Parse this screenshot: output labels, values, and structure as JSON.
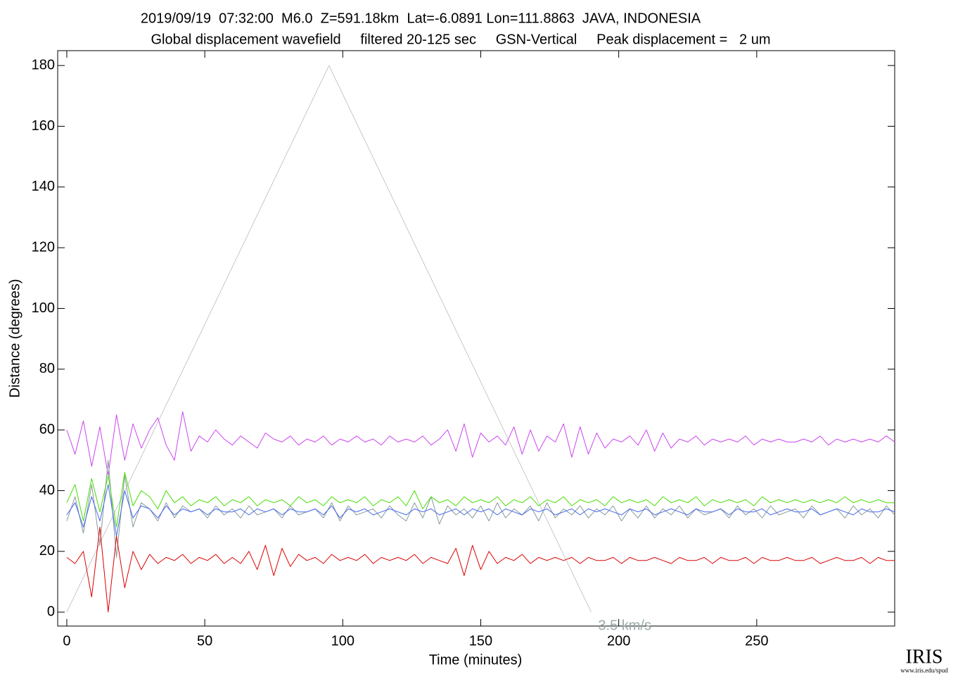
{
  "chart_data": {
    "type": "line",
    "title": "2019/09/19  07:32:00  M6.0  Z=591.18km  Lat=-6.0891 Lon=111.8863  JAVA, INDONESIA",
    "subtitle": "Global displacement wavefield     filtered 20-125 sec     GSN-Vertical     Peak displacement =   2 um",
    "x_label": "Time (minutes)",
    "y_label": "Distance (degrees)",
    "xlim": [
      -3.3,
      300
    ],
    "ylim": [
      -4.6,
      184.9
    ],
    "xticks": [
      0,
      50,
      100,
      150,
      200,
      250
    ],
    "yticks": [
      0,
      20,
      40,
      60,
      80,
      100,
      120,
      140,
      160,
      180
    ],
    "x": [
      0,
      3,
      6,
      9,
      12,
      15,
      18,
      21,
      24,
      27,
      30,
      33,
      36,
      39,
      42,
      45,
      48,
      51,
      54,
      57,
      60,
      63,
      66,
      69,
      72,
      75,
      78,
      81,
      84,
      87,
      90,
      93,
      96,
      99,
      102,
      105,
      108,
      111,
      114,
      117,
      120,
      123,
      126,
      129,
      132,
      135,
      138,
      141,
      144,
      147,
      150,
      153,
      156,
      159,
      162,
      165,
      168,
      171,
      174,
      177,
      180,
      183,
      186,
      189,
      192,
      195,
      198,
      201,
      204,
      207,
      210,
      213,
      216,
      219,
      222,
      225,
      228,
      231,
      234,
      237,
      240,
      243,
      246,
      249,
      252,
      255,
      258,
      261,
      264,
      267,
      270,
      273,
      276,
      279,
      282,
      285,
      288,
      291,
      294,
      297,
      300
    ],
    "series": [
      {
        "color": "#cc44ee",
        "values": [
          60,
          52,
          63,
          48,
          61,
          45,
          65,
          50,
          62,
          54,
          60,
          64,
          55,
          50,
          66,
          53,
          58,
          56,
          60,
          57,
          55,
          58,
          56,
          54,
          59,
          57,
          56,
          58,
          55,
          57,
          56,
          58,
          55,
          57,
          56,
          58,
          56,
          57,
          55,
          58,
          56,
          57,
          56,
          58,
          55,
          57,
          60,
          53,
          62,
          51,
          59,
          56,
          58,
          55,
          61,
          52,
          60,
          53,
          58,
          56,
          62,
          51,
          61,
          52,
          59,
          54,
          57,
          56,
          58,
          55,
          60,
          53,
          59,
          54,
          57,
          56,
          58,
          55,
          57,
          56,
          57,
          56,
          58,
          55,
          57,
          56,
          57,
          56,
          56,
          57,
          56,
          58,
          55,
          57,
          56,
          57,
          56,
          57,
          56,
          58,
          56
        ]
      },
      {
        "color": "#889999",
        "values": [
          30,
          38,
          26,
          42,
          22,
          50,
          18,
          45,
          28,
          36,
          34,
          30,
          36,
          31,
          35,
          33,
          34,
          31,
          35,
          32,
          34,
          31,
          35,
          32,
          33,
          34,
          31,
          35,
          32,
          33,
          34,
          31,
          36,
          30,
          35,
          32,
          33,
          34,
          31,
          35,
          32,
          30,
          36,
          31,
          38,
          29,
          35,
          32,
          34,
          31,
          35,
          30,
          36,
          31,
          34,
          32,
          35,
          30,
          36,
          31,
          34,
          32,
          35,
          31,
          34,
          32,
          35,
          30,
          34,
          31,
          35,
          31,
          34,
          32,
          35,
          31,
          34,
          32,
          33,
          34,
          31,
          35,
          32,
          34,
          31,
          35,
          32,
          33,
          34,
          31,
          35,
          32,
          33,
          34,
          31,
          35,
          32,
          34,
          31,
          35,
          32
        ]
      },
      {
        "color": "#4466ee",
        "values": [
          32,
          36,
          28,
          38,
          30,
          42,
          25,
          40,
          31,
          35,
          34,
          31,
          35,
          32,
          34,
          33,
          34,
          32,
          34,
          33,
          33,
          34,
          32,
          34,
          33,
          34,
          32,
          34,
          33,
          33,
          34,
          32,
          35,
          31,
          34,
          33,
          34,
          32,
          33,
          34,
          33,
          32,
          34,
          33,
          34,
          32,
          33,
          34,
          32,
          34,
          33,
          34,
          32,
          34,
          33,
          32,
          34,
          33,
          34,
          32,
          33,
          34,
          32,
          34,
          33,
          34,
          33,
          32,
          34,
          33,
          34,
          32,
          33,
          34,
          33,
          32,
          34,
          33,
          33,
          34,
          32,
          34,
          33,
          33,
          34,
          32,
          33,
          34,
          33,
          33,
          34,
          32,
          33,
          34,
          33,
          32,
          34,
          33,
          33,
          34,
          33
        ]
      },
      {
        "color": "#44dd00",
        "values": [
          36,
          42,
          30,
          44,
          33,
          45,
          28,
          46,
          35,
          40,
          38,
          34,
          40,
          36,
          38,
          35,
          37,
          36,
          38,
          35,
          37,
          36,
          38,
          35,
          37,
          36,
          37,
          35,
          38,
          36,
          37,
          35,
          38,
          36,
          37,
          36,
          38,
          35,
          37,
          36,
          38,
          35,
          40,
          34,
          38,
          36,
          37,
          35,
          38,
          36,
          37,
          36,
          38,
          35,
          37,
          36,
          38,
          35,
          37,
          36,
          38,
          35,
          37,
          36,
          37,
          35,
          38,
          36,
          37,
          36,
          37,
          35,
          38,
          36,
          37,
          36,
          38,
          35,
          37,
          36,
          37,
          36,
          37,
          35,
          38,
          36,
          37,
          36,
          37,
          36,
          37,
          36,
          37,
          36,
          38,
          36,
          37,
          36,
          37,
          36,
          36
        ]
      },
      {
        "color": "#dd0000",
        "values": [
          18,
          16,
          20,
          5,
          28,
          0,
          25,
          8,
          20,
          14,
          19,
          16,
          18,
          17,
          19,
          16,
          18,
          17,
          19,
          16,
          18,
          16,
          20,
          14,
          22,
          12,
          21,
          15,
          19,
          17,
          18,
          16,
          19,
          17,
          18,
          17,
          19,
          16,
          18,
          17,
          18,
          17,
          19,
          16,
          18,
          17,
          16,
          21,
          12,
          22,
          14,
          20,
          16,
          18,
          17,
          19,
          16,
          18,
          17,
          18,
          17,
          18,
          16,
          18,
          17,
          17,
          18,
          16,
          18,
          17,
          17,
          18,
          17,
          16,
          18,
          17,
          17,
          18,
          16,
          18,
          17,
          17,
          18,
          16,
          18,
          17,
          17,
          18,
          17,
          17,
          18,
          16,
          17,
          18,
          17,
          17,
          18,
          16,
          18,
          17,
          17
        ]
      }
    ],
    "reference_line": {
      "label": "3.5 km/s",
      "color": "#bbbbbb",
      "label_color": "#99aaaa",
      "x": [
        0,
        95,
        190
      ],
      "y": [
        0,
        180,
        0
      ]
    },
    "logo": {
      "text": "IRIS",
      "url": "www.iris.edu/spud"
    }
  }
}
